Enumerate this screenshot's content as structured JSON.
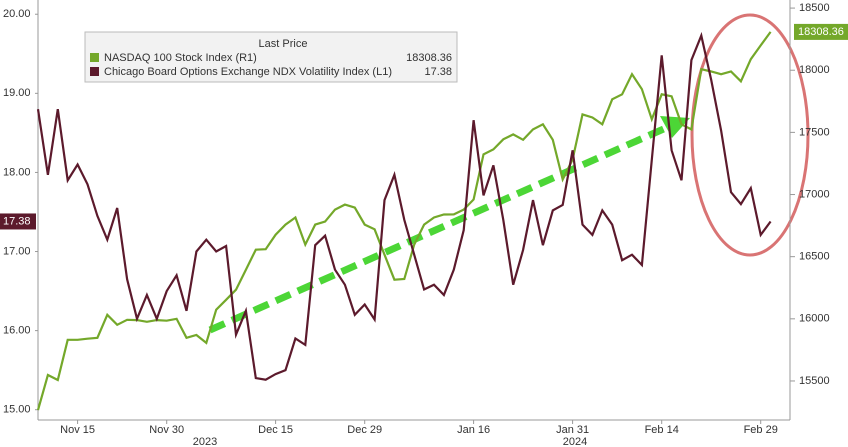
{
  "chart_data": {
    "type": "line",
    "legend_title": "Last Price",
    "categories": [
      null,
      null,
      null,
      null,
      "Nov 15",
      null,
      null,
      null,
      null,
      null,
      null,
      null,
      null,
      "Nov 30",
      null,
      null,
      null,
      null,
      null,
      null,
      null,
      null,
      null,
      null,
      "Dec 15",
      null,
      null,
      null,
      null,
      null,
      null,
      null,
      null,
      "Dec 29",
      null,
      null,
      null,
      null,
      null,
      null,
      null,
      null,
      null,
      null,
      "Jan 16",
      null,
      null,
      null,
      null,
      null,
      null,
      null,
      null,
      null,
      "Jan 31",
      null,
      null,
      null,
      null,
      null,
      null,
      null,
      null,
      "Feb 14",
      null,
      null,
      null,
      null,
      null,
      null,
      null,
      null,
      null,
      "Feb 29",
      null
    ],
    "x_group_labels": [
      "2023",
      "2024"
    ],
    "series": [
      {
        "name": "NASDAQ 100 Stock Index (R1)",
        "color": "#74a82a",
        "axis": "y2",
        "values": [
          15266,
          15548,
          15508,
          15831,
          15831,
          15840,
          15847,
          16032,
          15952,
          15992,
          15990,
          15976,
          15990,
          15985,
          16000,
          15847,
          15870,
          15806,
          16073,
          16153,
          16234,
          16395,
          16556,
          16560,
          16677,
          16758,
          16815,
          16597,
          16758,
          16782,
          16879,
          16919,
          16895,
          16758,
          16720,
          16516,
          16315,
          16320,
          16597,
          16758,
          16815,
          16839,
          16840,
          16879,
          16960,
          17323,
          17363,
          17444,
          17484,
          17440,
          17524,
          17565,
          17440,
          17121,
          17282,
          17645,
          17620,
          17565,
          17766,
          17806,
          17968,
          17847,
          17605,
          17806,
          17790,
          17565,
          17524,
          18008,
          17990,
          17968,
          17990,
          17911,
          18089,
          18200,
          18308.36
        ]
      },
      {
        "name": "Chicago Board Options Exchange NDX Volatility Index (L1)",
        "color": "#5c1a2c",
        "axis": "y",
        "values": [
          18.8,
          17.97,
          18.8,
          17.9,
          18.1,
          17.85,
          17.45,
          17.15,
          17.55,
          16.65,
          16.15,
          16.45,
          16.15,
          16.5,
          16.7,
          16.25,
          17.0,
          17.15,
          17.0,
          17.07,
          15.95,
          16.25,
          15.4,
          15.38,
          15.45,
          15.5,
          15.9,
          15.82,
          17.08,
          17.2,
          16.77,
          16.58,
          16.2,
          16.33,
          16.14,
          17.65,
          17.97,
          17.4,
          16.96,
          16.52,
          16.58,
          16.45,
          16.77,
          17.27,
          18.66,
          17.71,
          18.09,
          17.4,
          16.58,
          17.02,
          17.65,
          17.08,
          17.52,
          17.59,
          18.28,
          17.34,
          17.21,
          17.52,
          17.34,
          16.89,
          16.96,
          16.83,
          18.16,
          19.48,
          18.28,
          17.9,
          19.42,
          19.73,
          19.17,
          18.53,
          17.75,
          17.6,
          17.8,
          17.21,
          17.38
        ]
      }
    ],
    "ylim": [
      14.87,
      20.18
    ],
    "yticks": [
      {
        "value": 15,
        "label": "15.00"
      },
      {
        "value": 16,
        "label": "16.00"
      },
      {
        "value": 17,
        "label": "17.00"
      },
      {
        "value": 18,
        "label": "18.00"
      },
      {
        "value": 19,
        "label": "19.00"
      },
      {
        "value": 20,
        "label": "20.00"
      }
    ],
    "y2lim": [
      15186,
      18565
    ],
    "y2ticks": [
      15500,
      16000,
      16500,
      17000,
      17500,
      18000,
      18500
    ],
    "grid": false
  }
}
